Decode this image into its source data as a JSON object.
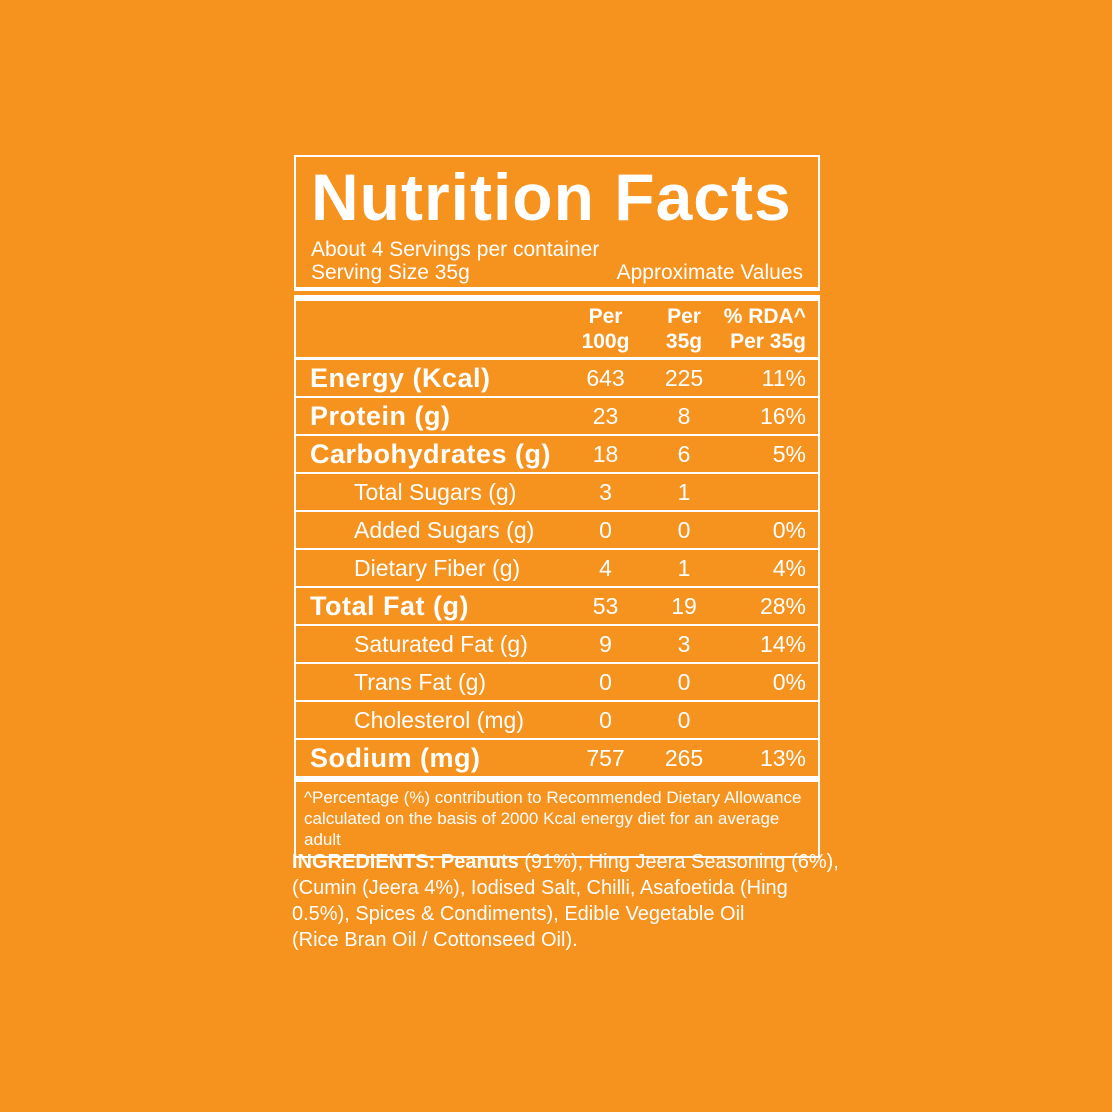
{
  "page": {
    "background_color": "#F6921E",
    "text_color": "#FFFFFF"
  },
  "header": {
    "title": "Nutrition Facts",
    "servings_per_container": "About 4 Servings per container",
    "serving_size": "Serving Size 35g",
    "approximate_values": "Approximate Values"
  },
  "table": {
    "columns": [
      {
        "line1": "Per",
        "line2": "100g"
      },
      {
        "line1": "Per",
        "line2": "35g"
      },
      {
        "line1": "% RDA^",
        "line2": "Per 35g"
      }
    ],
    "rows": [
      {
        "label": "Energy (Kcal)",
        "per100g": "643",
        "per35g": "225",
        "rda": "11%",
        "bold": true,
        "indent": false
      },
      {
        "label": "Protein (g)",
        "per100g": "23",
        "per35g": "8",
        "rda": "16%",
        "bold": true,
        "indent": false
      },
      {
        "label": "Carbohydrates (g)",
        "per100g": "18",
        "per35g": "6",
        "rda": "5%",
        "bold": true,
        "indent": false
      },
      {
        "label": "Total Sugars (g)",
        "per100g": "3",
        "per35g": "1",
        "rda": "",
        "bold": false,
        "indent": true
      },
      {
        "label": "Added Sugars (g)",
        "per100g": "0",
        "per35g": "0",
        "rda": "0%",
        "bold": false,
        "indent": true
      },
      {
        "label": "Dietary Fiber (g)",
        "per100g": "4",
        "per35g": "1",
        "rda": "4%",
        "bold": false,
        "indent": true
      },
      {
        "label": "Total Fat (g)",
        "per100g": "53",
        "per35g": "19",
        "rda": "28%",
        "bold": true,
        "indent": false
      },
      {
        "label": "Saturated Fat (g)",
        "per100g": "9",
        "per35g": "3",
        "rda": "14%",
        "bold": false,
        "indent": true
      },
      {
        "label": "Trans Fat (g)",
        "per100g": "0",
        "per35g": "0",
        "rda": "0%",
        "bold": false,
        "indent": true
      },
      {
        "label": "Cholesterol (mg)",
        "per100g": "0",
        "per35g": "0",
        "rda": "",
        "bold": false,
        "indent": true
      },
      {
        "label": "Sodium (mg)",
        "per100g": "757",
        "per35g": "265",
        "rda": "13%",
        "bold": true,
        "indent": false
      }
    ]
  },
  "footnote": {
    "line1": "^Percentage (%) contribution to Recommended Dietary Allowance",
    "line2": "calculated on the basis of 2000 Kcal energy diet for an average adult"
  },
  "ingredients": {
    "bold_text": "INGREDIENTS: Peanuts",
    "line1_rest": " (91%), Hing Jeera Seasoning (6%),",
    "line2": "(Cumin (Jeera 4%), Iodised Salt, Chilli, Asafoetida (Hing",
    "line3": "0.5%), Spices & Condiments), Edible Vegetable Oil",
    "line4": "(Rice Bran Oil / Cottonseed Oil)."
  }
}
